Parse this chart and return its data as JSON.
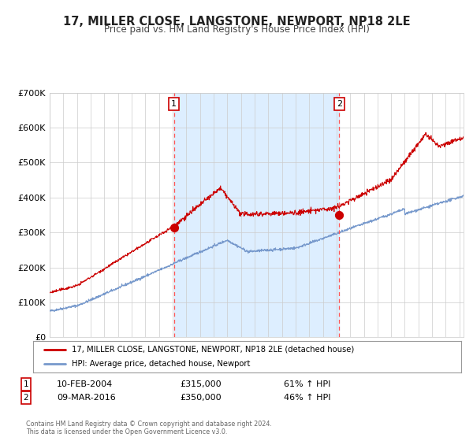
{
  "title": "17, MILLER CLOSE, LANGSTONE, NEWPORT, NP18 2LE",
  "subtitle": "Price paid vs. HM Land Registry's House Price Index (HPI)",
  "title_fontsize": 10.5,
  "subtitle_fontsize": 8.5,
  "legend_label_red": "17, MILLER CLOSE, LANGSTONE, NEWPORT, NP18 2LE (detached house)",
  "legend_label_blue": "HPI: Average price, detached house, Newport",
  "annotation1_date": "10-FEB-2004",
  "annotation1_price": "£315,000",
  "annotation1_hpi": "61% ↑ HPI",
  "annotation1_year": 2004.1,
  "annotation1_value": 315000,
  "annotation2_date": "09-MAR-2016",
  "annotation2_price": "£350,000",
  "annotation2_hpi": "46% ↑ HPI",
  "annotation2_year": 2016.2,
  "annotation2_value": 350000,
  "ylim": [
    0,
    700000
  ],
  "xlim_start": 1995.0,
  "xlim_end": 2025.3,
  "background_color": "#ffffff",
  "shaded_region_color": "#ddeeff",
  "red_line_color": "#cc0000",
  "blue_line_color": "#7799cc",
  "grid_color": "#cccccc",
  "dashed_line_color": "#ff5555",
  "dot_color": "#cc0000",
  "footer_text": "Contains HM Land Registry data © Crown copyright and database right 2024.\nThis data is licensed under the Open Government Licence v3.0.",
  "yticks": [
    0,
    100000,
    200000,
    300000,
    400000,
    500000,
    600000,
    700000
  ],
  "ytick_labels": [
    "£0",
    "£100K",
    "£200K",
    "£300K",
    "£400K",
    "£500K",
    "£600K",
    "£700K"
  ]
}
